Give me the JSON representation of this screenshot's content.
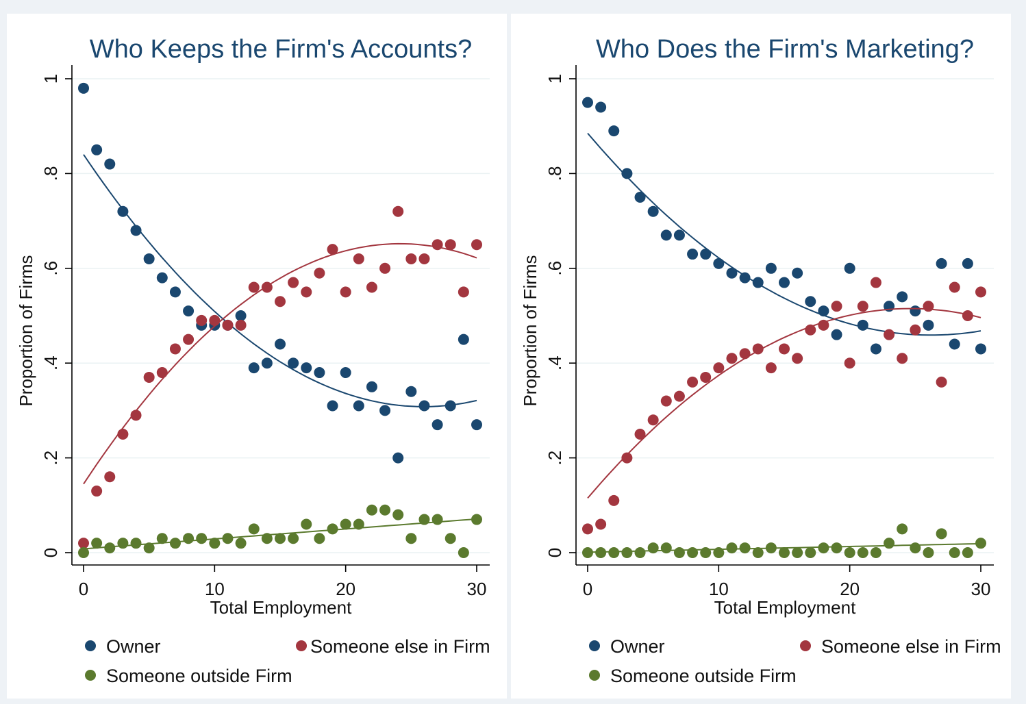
{
  "colors": {
    "owner": "#1a476f",
    "someone_else": "#a3363f",
    "outside": "#5b7a2e",
    "title": "#1a476f"
  },
  "legend": {
    "owner": "Owner",
    "someone_else": "Someone else in Firm",
    "outside": "Someone outside Firm"
  },
  "chart_data": [
    {
      "type": "scatter",
      "title": "Who Keeps the Firm's Accounts?",
      "xlabel": "Total Employment",
      "ylabel": "Proportion of Firms",
      "xlim": [
        0,
        30
      ],
      "ylim": [
        0,
        1
      ],
      "xticks": [
        0,
        10,
        20,
        30
      ],
      "xtick_labels": [
        "0",
        "10",
        "20",
        "30"
      ],
      "yticks": [
        0,
        0.2,
        0.4,
        0.6,
        0.8,
        1
      ],
      "ytick_labels": [
        "0",
        ".2",
        ".4",
        ".6",
        ".8",
        "1"
      ],
      "grid": true,
      "legend_position": "bottom",
      "x": [
        0,
        1,
        2,
        3,
        4,
        5,
        6,
        7,
        8,
        9,
        10,
        11,
        12,
        13,
        14,
        15,
        16,
        17,
        18,
        19,
        20,
        21,
        22,
        23,
        24,
        25,
        26,
        27,
        28,
        29,
        30
      ],
      "series": [
        {
          "key": "owner",
          "values": [
            0.98,
            0.85,
            0.82,
            0.72,
            0.68,
            0.62,
            0.58,
            0.55,
            0.51,
            0.48,
            0.48,
            0.48,
            0.5,
            0.39,
            0.4,
            0.44,
            0.4,
            0.39,
            0.38,
            0.31,
            0.38,
            0.31,
            0.35,
            0.3,
            0.2,
            0.34,
            0.31,
            0.27,
            0.31,
            0.45,
            0.27
          ],
          "fit": [
            0.84,
            -0.041,
            0.00079
          ]
        },
        {
          "key": "someone_else",
          "values": [
            0.02,
            0.13,
            0.16,
            0.25,
            0.29,
            0.37,
            0.38,
            0.43,
            0.45,
            0.49,
            0.49,
            0.48,
            0.48,
            0.56,
            0.56,
            0.53,
            0.57,
            0.55,
            0.59,
            0.64,
            0.55,
            0.62,
            0.56,
            0.6,
            0.72,
            0.62,
            0.62,
            0.65,
            0.65,
            0.55,
            0.65
          ],
          "fit": [
            0.145,
            0.042,
            -0.00087
          ]
        },
        {
          "key": "outside",
          "values": [
            0.0,
            0.02,
            0.01,
            0.02,
            0.02,
            0.01,
            0.03,
            0.02,
            0.03,
            0.03,
            0.02,
            0.03,
            0.02,
            0.05,
            0.03,
            0.03,
            0.03,
            0.06,
            0.03,
            0.05,
            0.06,
            0.06,
            0.09,
            0.09,
            0.08,
            0.03,
            0.07,
            0.07,
            0.03,
            0.0,
            0.07
          ],
          "fit": [
            0.008,
            0.0021,
            0.0
          ]
        }
      ]
    },
    {
      "type": "scatter",
      "title": "Who Does the Firm's Marketing?",
      "xlabel": "Total Employment",
      "ylabel": "Proportion of Firms",
      "xlim": [
        0,
        30
      ],
      "ylim": [
        0,
        1
      ],
      "xticks": [
        0,
        10,
        20,
        30
      ],
      "xtick_labels": [
        "0",
        "10",
        "20",
        "30"
      ],
      "yticks": [
        0,
        0.2,
        0.4,
        0.6,
        0.8,
        1
      ],
      "ytick_labels": [
        "0",
        ".2",
        ".4",
        ".6",
        ".8",
        "1"
      ],
      "grid": true,
      "legend_position": "bottom",
      "x": [
        0,
        1,
        2,
        3,
        4,
        5,
        6,
        7,
        8,
        9,
        10,
        11,
        12,
        13,
        14,
        15,
        16,
        17,
        18,
        19,
        20,
        21,
        22,
        23,
        24,
        25,
        26,
        27,
        28,
        29,
        30
      ],
      "series": [
        {
          "key": "owner",
          "values": [
            0.95,
            0.94,
            0.89,
            0.8,
            0.75,
            0.72,
            0.67,
            0.67,
            0.63,
            0.63,
            0.61,
            0.59,
            0.58,
            0.57,
            0.6,
            0.57,
            0.59,
            0.53,
            0.51,
            0.46,
            0.6,
            0.48,
            0.43,
            0.52,
            0.54,
            0.51,
            0.48,
            0.61,
            0.44,
            0.61,
            0.43
          ],
          "fit": [
            0.885,
            -0.0325,
            0.00062
          ]
        },
        {
          "key": "someone_else",
          "values": [
            0.05,
            0.06,
            0.11,
            0.2,
            0.25,
            0.28,
            0.32,
            0.33,
            0.36,
            0.37,
            0.39,
            0.41,
            0.42,
            0.43,
            0.39,
            0.43,
            0.41,
            0.47,
            0.48,
            0.52,
            0.4,
            0.52,
            0.57,
            0.46,
            0.41,
            0.47,
            0.52,
            0.36,
            0.56,
            0.5,
            0.55
          ],
          "fit": [
            0.115,
            0.0325,
            -0.00066
          ]
        },
        {
          "key": "outside",
          "values": [
            0.0,
            0.0,
            0.0,
            0.0,
            0.0,
            0.01,
            0.01,
            0.0,
            0.0,
            0.0,
            0.0,
            0.01,
            0.01,
            0.0,
            0.01,
            0.0,
            0.0,
            0.0,
            0.01,
            0.01,
            0.0,
            0.0,
            0.0,
            0.02,
            0.05,
            0.01,
            0.0,
            0.04,
            0.0,
            0.0,
            0.02
          ],
          "fit": [
            0.001,
            0.0006,
            0.0
          ]
        }
      ]
    }
  ]
}
